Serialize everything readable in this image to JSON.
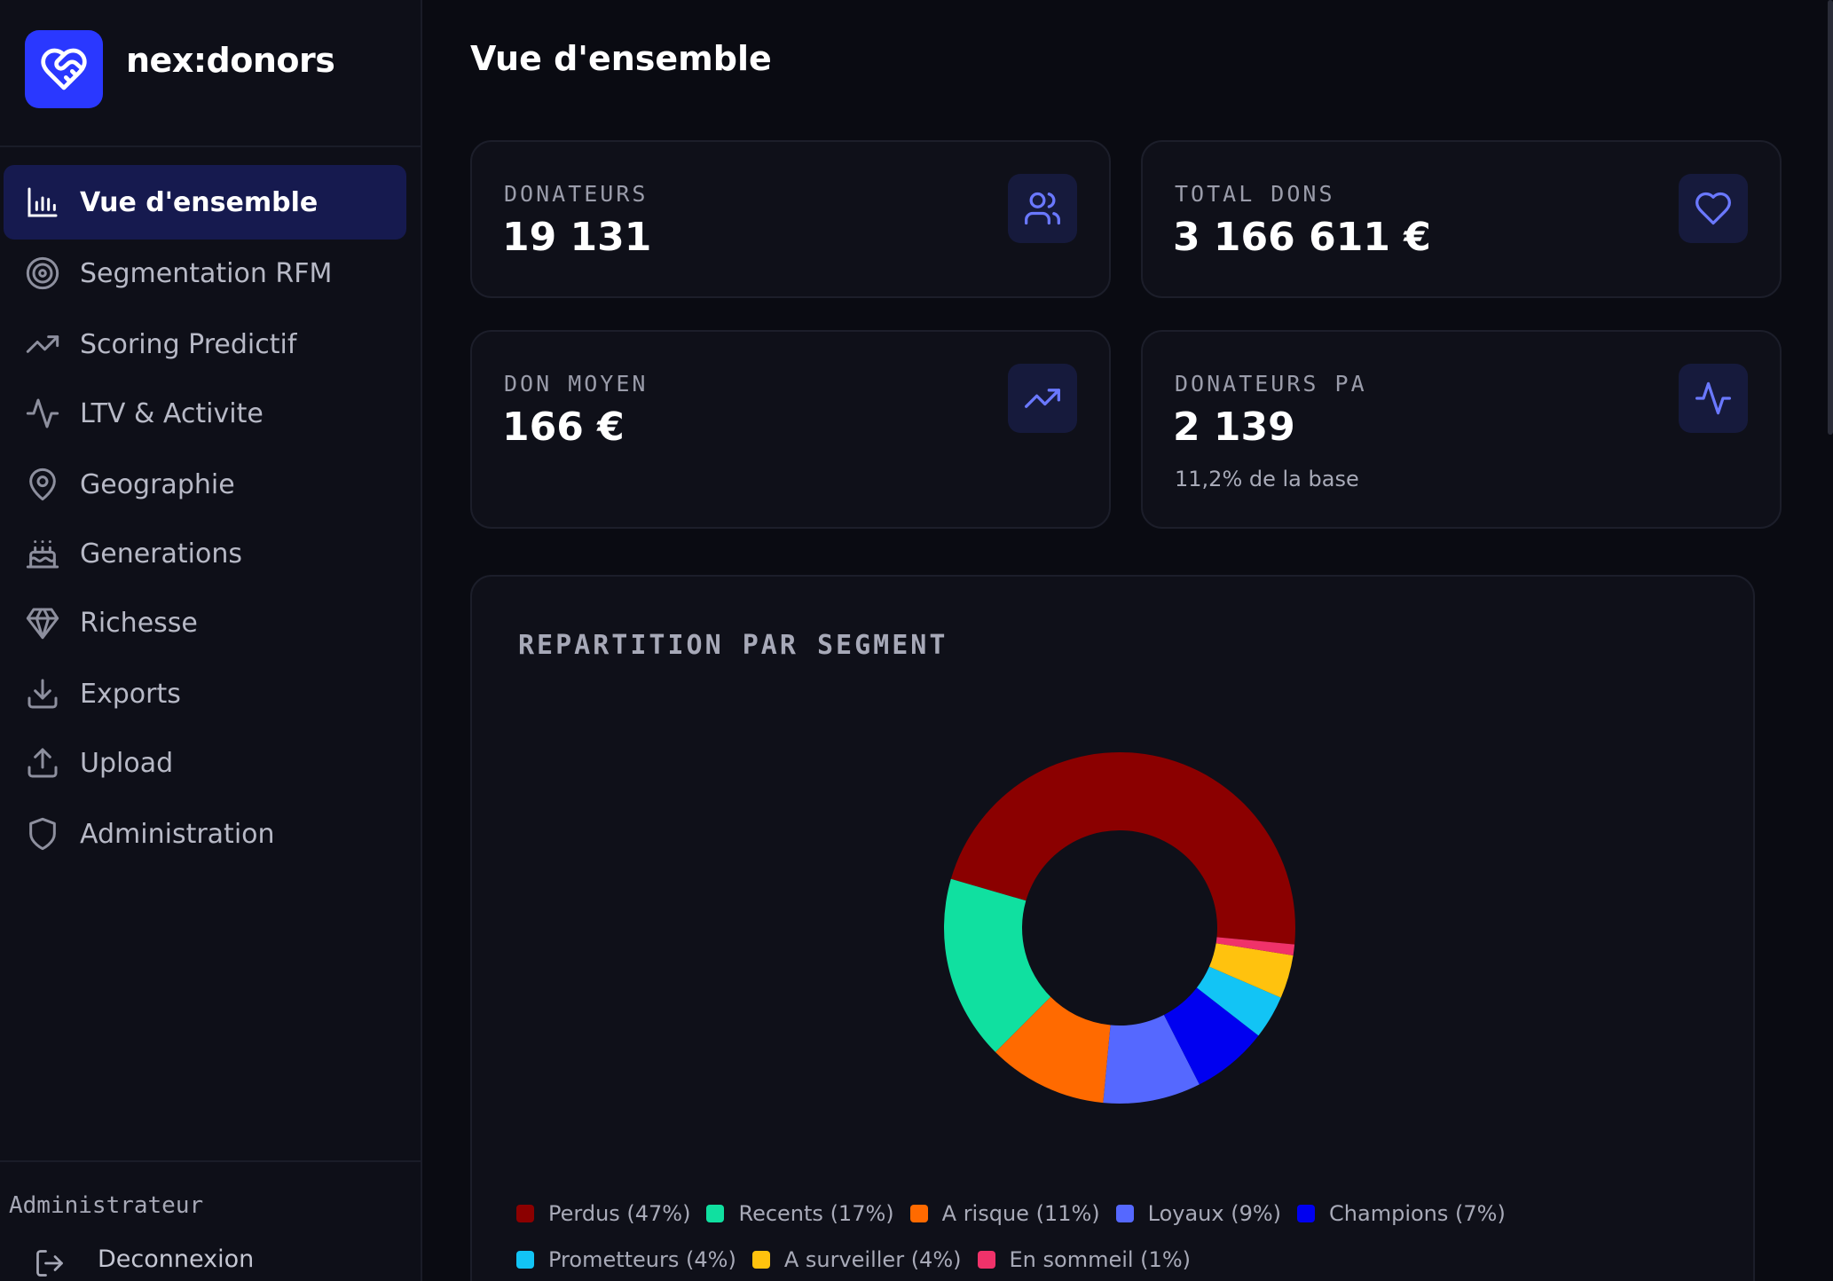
{
  "brand": {
    "name": "nex:donors",
    "logo_icon": "heart-handshake-icon",
    "accent": "#2a38ff"
  },
  "sidebar": {
    "items": [
      {
        "label": "Vue d'ensemble",
        "icon": "bar-chart-icon",
        "active": true
      },
      {
        "label": "Segmentation RFM",
        "icon": "target-icon",
        "active": false
      },
      {
        "label": "Scoring Predictif",
        "icon": "trending-up-icon",
        "active": false
      },
      {
        "label": "LTV & Activite",
        "icon": "activity-icon",
        "active": false
      },
      {
        "label": "Geographie",
        "icon": "map-pin-icon",
        "active": false
      },
      {
        "label": "Generations",
        "icon": "cake-icon",
        "active": false
      },
      {
        "label": "Richesse",
        "icon": "gem-icon",
        "active": false
      },
      {
        "label": "Exports",
        "icon": "download-icon",
        "active": false
      },
      {
        "label": "Upload",
        "icon": "upload-icon",
        "active": false
      },
      {
        "label": "Administration",
        "icon": "shield-icon",
        "active": false
      }
    ],
    "footer": {
      "role": "Administrateur",
      "logout_label": "Deconnexion",
      "logout_icon": "logout-icon"
    }
  },
  "main": {
    "title": "Vue d'ensemble",
    "stats": [
      {
        "label": "DONATEURS",
        "value": "19 131",
        "icon": "users-icon"
      },
      {
        "label": "TOTAL DONS",
        "value": "3 166 611 €",
        "icon": "heart-icon"
      },
      {
        "label": "DON MOYEN",
        "value": "166 €",
        "icon": "trending-up-icon"
      },
      {
        "label": "DONATEURS PA",
        "value": "2 139",
        "sub": "11,2% de la base",
        "icon": "activity-icon"
      }
    ]
  },
  "chart_data": {
    "type": "pie",
    "title": "REPARTITION PAR SEGMENT",
    "donut": true,
    "categories": [
      "Perdus",
      "Recents",
      "A risque",
      "Loyaux",
      "Champions",
      "Prometteurs",
      "A surveiller",
      "En sommeil"
    ],
    "values": [
      47,
      17,
      11,
      9,
      7,
      4,
      4,
      1
    ],
    "unit": "%",
    "legend_labels": [
      "Perdus (47%)",
      "Recents (17%)",
      "A risque (11%)",
      "Loyaux (9%)",
      "Champions (7%)",
      "Prometteurs (4%)",
      "A surveiller (4%)",
      "En sommeil (1%)"
    ],
    "colors": [
      "#8b0000",
      "#10e0a0",
      "#ff6a00",
      "#5568ff",
      "#0000f0",
      "#12c4f5",
      "#ffc20e",
      "#f0326a"
    ],
    "legend_placement": "bottom"
  }
}
